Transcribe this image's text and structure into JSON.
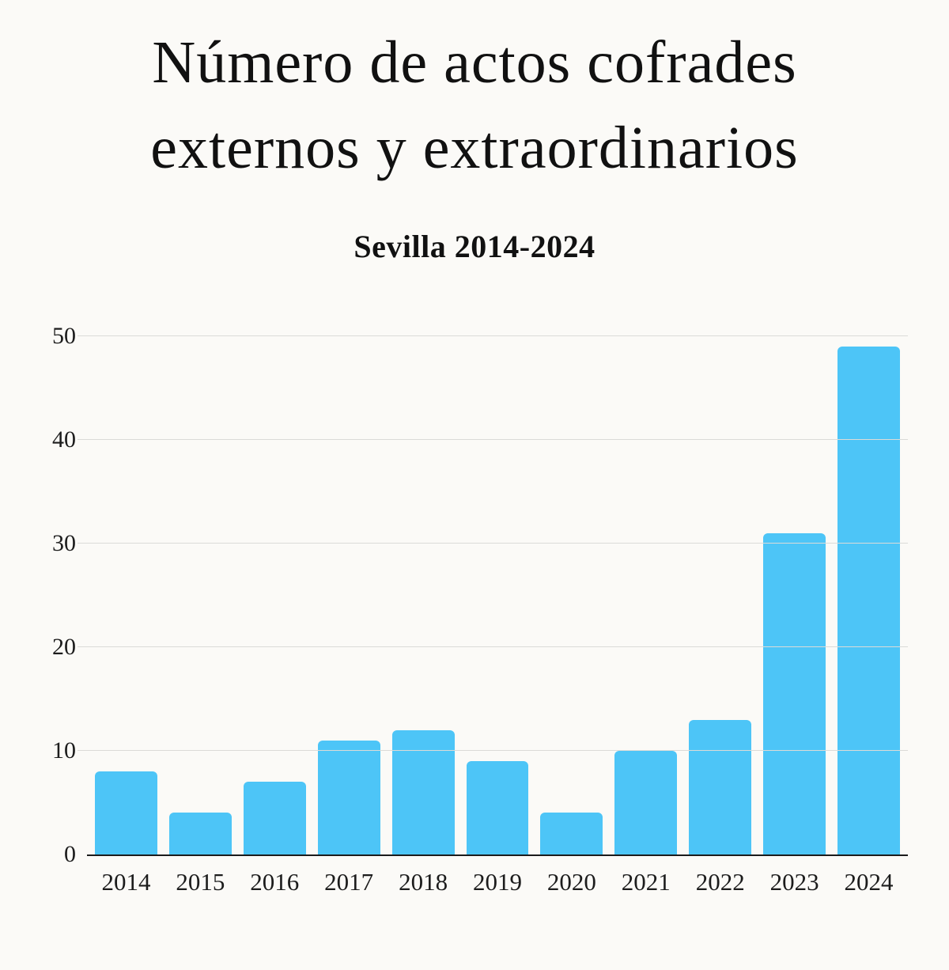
{
  "title": {
    "line1": "Número de actos cofrades",
    "line2": "externos y extraordinarios"
  },
  "subtitle": "Sevilla 2014-2024",
  "colors": {
    "bar": "#4dc5f7",
    "background": "#fbfaf7",
    "gridline": "#dbdbd8",
    "axis_text": "#1c1c1c"
  },
  "chart_data": {
    "type": "bar",
    "title": "Número de actos cofrades externos y extraordinarios",
    "subtitle": "Sevilla 2014-2024",
    "categories": [
      "2014",
      "2015",
      "2016",
      "2017",
      "2018",
      "2019",
      "2020",
      "2021",
      "2022",
      "2023",
      "2024"
    ],
    "values": [
      8,
      4,
      7,
      11,
      12,
      9,
      4,
      10,
      13,
      31,
      49
    ],
    "xlabel": "",
    "ylabel": "",
    "ylim": [
      0,
      50
    ],
    "yticks": [
      0,
      10,
      20,
      30,
      40,
      50
    ],
    "grid": true,
    "legend": "none",
    "bar_color": "#4dc5f7"
  }
}
